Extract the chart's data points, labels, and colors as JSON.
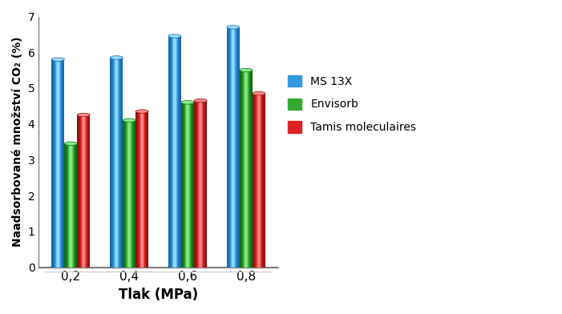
{
  "categories": [
    "0,2",
    "0,4",
    "0,6",
    "0,8"
  ],
  "series": [
    {
      "name": "MS 13X",
      "values": [
        5.8,
        5.85,
        6.45,
        6.7
      ],
      "color_main": "#3399DD",
      "color_light": "#99DDFF",
      "color_dark": "#1166AA"
    },
    {
      "name": "Envisorb",
      "values": [
        3.45,
        4.1,
        4.6,
        5.5
      ],
      "color_main": "#33AA33",
      "color_light": "#88EE88",
      "color_dark": "#116611"
    },
    {
      "name": "Tamis moleculaires",
      "values": [
        4.25,
        4.35,
        4.65,
        4.85
      ],
      "color_main": "#DD2222",
      "color_light": "#FF8888",
      "color_dark": "#881111"
    }
  ],
  "legend_colors": [
    "#3399DD",
    "#33AA33",
    "#DD2222"
  ],
  "xlabel": "Tlak (MPa)",
  "ylabel": "Naadsorbované množství CO₂ (%)",
  "ylim": [
    0,
    7
  ],
  "yticks": [
    0,
    1,
    2,
    3,
    4,
    5,
    6,
    7
  ],
  "bar_width": 0.22,
  "background_color": "#ffffff"
}
